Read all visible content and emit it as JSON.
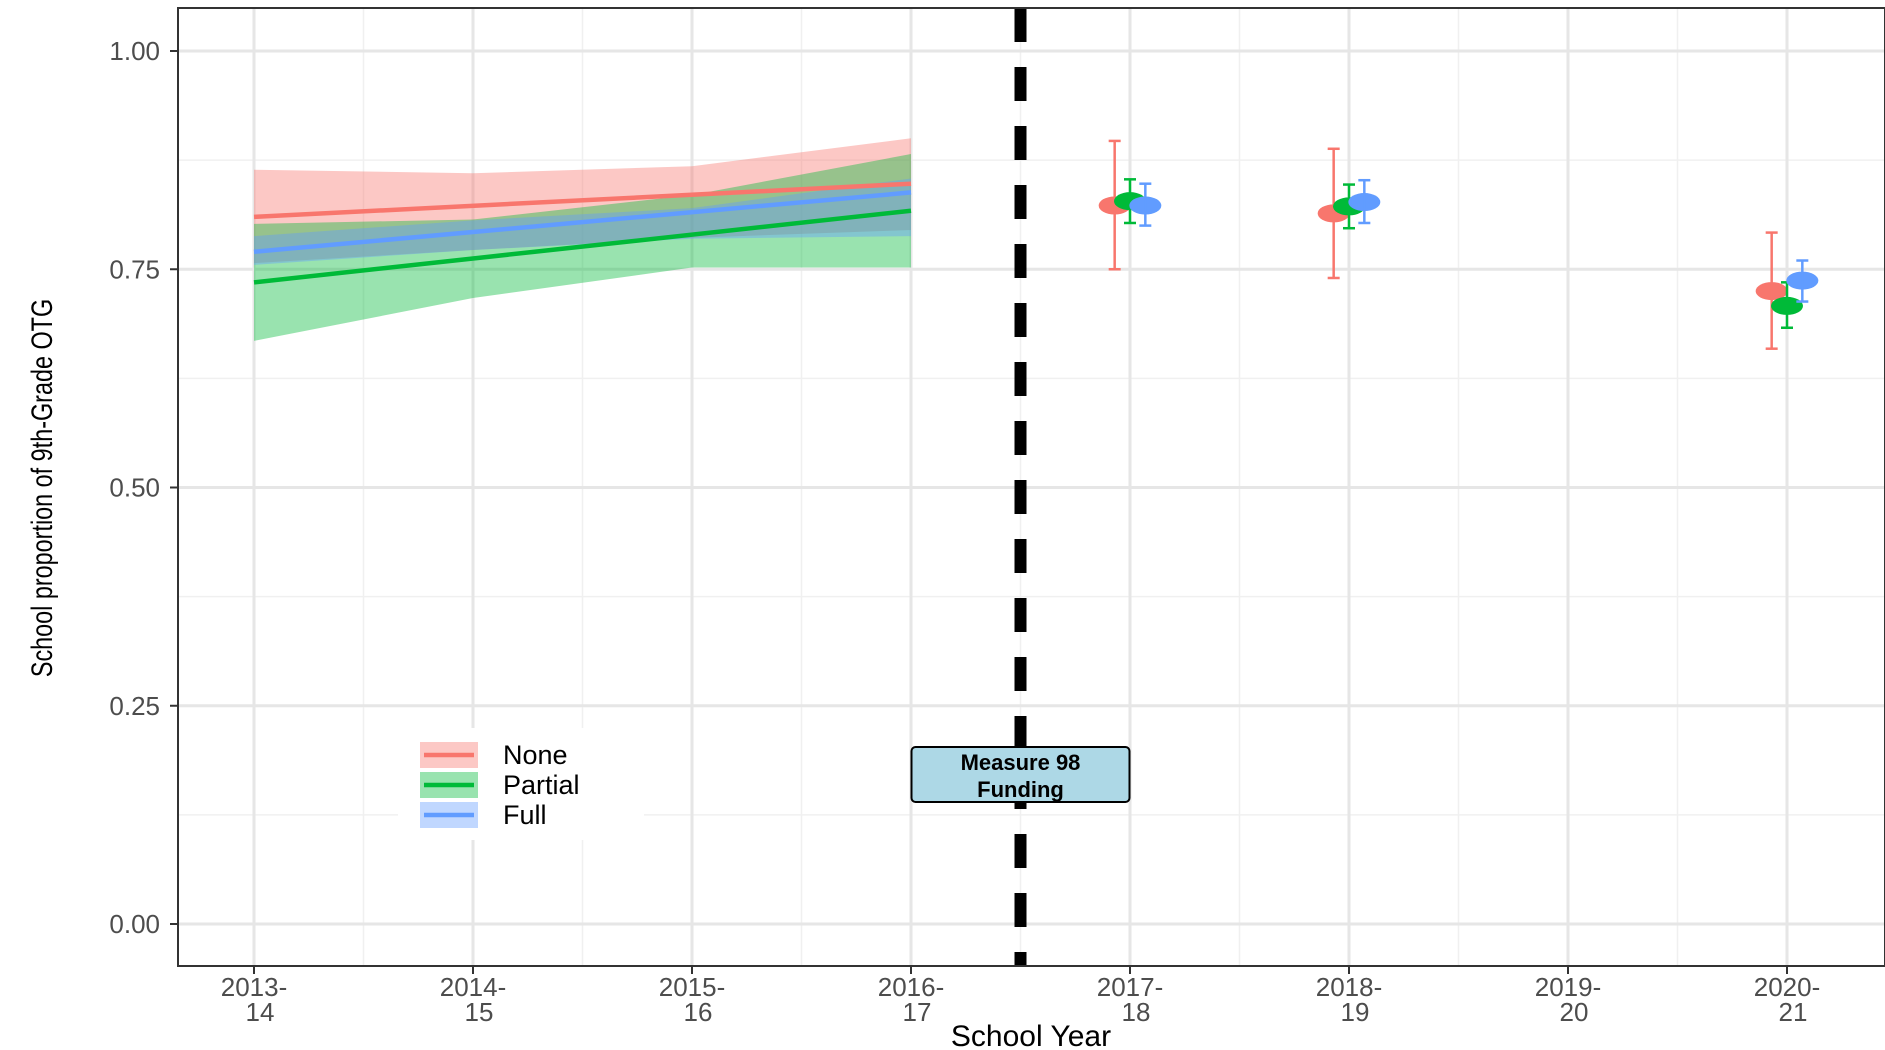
{
  "chart_data": {
    "type": "line",
    "title": "",
    "xlabel": "School Year",
    "ylabel": "School proportion of 9th-Grade OTG",
    "x_categories": [
      [
        "2013-",
        "14"
      ],
      [
        "2014-",
        "15"
      ],
      [
        "2015-",
        "16"
      ],
      [
        "2016-",
        "17"
      ],
      [
        "2017-",
        "18"
      ],
      [
        "2018-",
        "19"
      ],
      [
        "2019-",
        "20"
      ],
      [
        "2020-",
        "21"
      ]
    ],
    "y_ticks": [
      "0.00",
      "0.25",
      "0.50",
      "0.75",
      "1.00"
    ],
    "ylim": [
      -0.045,
      1.05
    ],
    "grid": true,
    "legend_position": "bottom-left",
    "annotation": {
      "lines": [
        "Measure 98",
        "Funding"
      ],
      "x": 3.5,
      "fill": "#add8e6"
    },
    "cutoff_x": 3.5,
    "series": [
      {
        "name": "None",
        "color": "#f8766d",
        "trend": [
          [
            0,
            0.81
          ],
          [
            3,
            0.848
          ]
        ],
        "band": [
          [
            0,
            0.757,
            0.864
          ],
          [
            1,
            0.772,
            0.86
          ],
          [
            2,
            0.786,
            0.868
          ],
          [
            3,
            0.795,
            0.9
          ]
        ],
        "points": [
          {
            "x": 4,
            "y": 0.823,
            "lo": 0.75,
            "hi": 0.897
          },
          {
            "x": 5,
            "y": 0.814,
            "lo": 0.74,
            "hi": 0.888
          },
          {
            "x": 7,
            "y": 0.725,
            "lo": 0.659,
            "hi": 0.792
          }
        ]
      },
      {
        "name": "Partial",
        "color": "#00ba38",
        "trend": [
          [
            0,
            0.735
          ],
          [
            3,
            0.817
          ]
        ],
        "band": [
          [
            0,
            0.668,
            0.802
          ],
          [
            1,
            0.717,
            0.807
          ],
          [
            2,
            0.752,
            0.835
          ],
          [
            3,
            0.752,
            0.882
          ]
        ],
        "points": [
          {
            "x": 4,
            "y": 0.828,
            "lo": 0.803,
            "hi": 0.853
          },
          {
            "x": 5,
            "y": 0.822,
            "lo": 0.797,
            "hi": 0.847
          },
          {
            "x": 7,
            "y": 0.708,
            "lo": 0.683,
            "hi": 0.735
          }
        ]
      },
      {
        "name": "Full",
        "color": "#619cff",
        "trend": [
          [
            0,
            0.77
          ],
          [
            3,
            0.838
          ]
        ],
        "band": [
          [
            0,
            0.755,
            0.788
          ],
          [
            1,
            0.772,
            0.806
          ],
          [
            2,
            0.785,
            0.82
          ],
          [
            3,
            0.788,
            0.854
          ]
        ],
        "points": [
          {
            "x": 4,
            "y": 0.823,
            "lo": 0.8,
            "hi": 0.848
          },
          {
            "x": 5,
            "y": 0.827,
            "lo": 0.803,
            "hi": 0.852
          },
          {
            "x": 7,
            "y": 0.737,
            "lo": 0.713,
            "hi": 0.76
          }
        ]
      }
    ]
  }
}
